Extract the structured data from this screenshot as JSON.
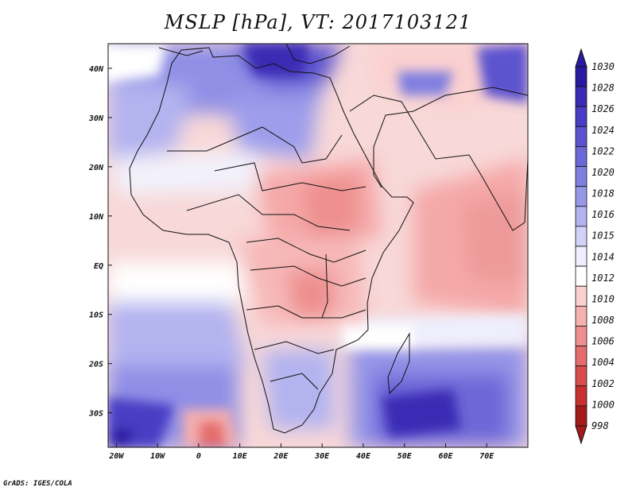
{
  "title": "MSLP [hPa], VT: 2017103121",
  "credit": "GrADS: IGES/COLA",
  "map": {
    "lon_ticks": [
      "20W",
      "10W",
      "0",
      "10E",
      "20E",
      "30E",
      "40E",
      "50E",
      "60E",
      "70E"
    ],
    "lat_ticks": [
      "40N",
      "30N",
      "20N",
      "10N",
      "EQ",
      "10S",
      "20S",
      "30S"
    ],
    "lon_tick_values": [
      -20,
      -10,
      0,
      10,
      20,
      30,
      40,
      50,
      60,
      70
    ],
    "lat_tick_values": [
      40,
      30,
      20,
      10,
      0,
      -10,
      -20,
      -30
    ],
    "lon_range": [
      -22,
      80
    ],
    "lat_range": [
      -37,
      45
    ]
  },
  "colorbar": {
    "levels": [
      "1030",
      "1028",
      "1026",
      "1024",
      "1022",
      "1020",
      "1018",
      "1016",
      "1015",
      "1014",
      "1012",
      "1010",
      "1008",
      "1006",
      "1004",
      "1002",
      "1000",
      "998"
    ],
    "colors": [
      "#2a1aa0",
      "#3a2ab4",
      "#4a3cc4",
      "#5c52cf",
      "#6d68d8",
      "#7f7fe0",
      "#9797e8",
      "#b3b3f0",
      "#d2d2f7",
      "#eeeefc",
      "#ffffff",
      "#fbd0d0",
      "#f5b0b0",
      "#ee8e8e",
      "#e46c6c",
      "#d94c4c",
      "#c83030",
      "#a51a1a"
    ]
  }
}
